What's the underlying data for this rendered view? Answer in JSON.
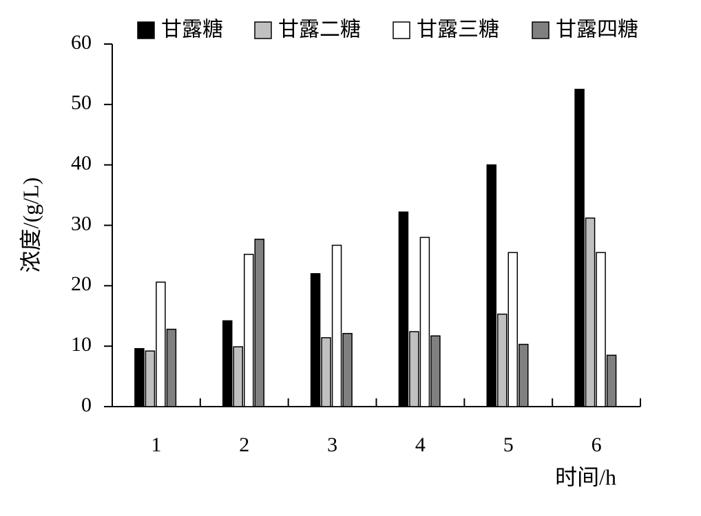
{
  "chart_data": {
    "type": "bar",
    "x_label": "时间/h",
    "y_label": "浓度/(g/L)",
    "categories": [
      "1",
      "2",
      "3",
      "4",
      "5",
      "6"
    ],
    "series": [
      {
        "name": "甘露糖",
        "color": "#000000",
        "values": [
          9.6,
          14.2,
          22.0,
          32.2,
          40.0,
          52.5
        ]
      },
      {
        "name": "甘露二糖",
        "color": "#c0c0c0",
        "values": [
          9.2,
          9.9,
          11.4,
          12.4,
          15.3,
          31.2
        ]
      },
      {
        "name": "甘露三糖",
        "color": "#ffffff",
        "values": [
          20.6,
          25.2,
          26.7,
          28.0,
          25.5,
          25.5
        ]
      },
      {
        "name": "甘露四糖",
        "color": "#808080",
        "values": [
          12.8,
          27.7,
          12.1,
          11.7,
          10.3,
          8.5
        ]
      }
    ],
    "ylim": [
      0,
      60
    ],
    "yticks": [
      0,
      10,
      20,
      30,
      40,
      50,
      60
    ],
    "legend": "top",
    "grid": false
  }
}
